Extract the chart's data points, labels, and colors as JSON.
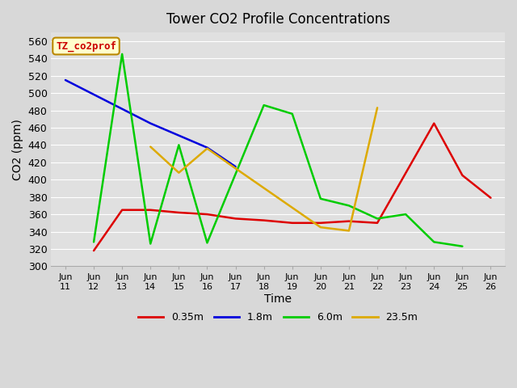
{
  "title": "Tower CO2 Profile Concentrations",
  "xlabel": "Time",
  "ylabel": "CO2 (ppm)",
  "ylim": [
    300,
    570
  ],
  "annotation": "TZ_co2prof",
  "tick_labels": [
    "Jun 11",
    "Jun 12",
    "Jun 13",
    "Jun 14",
    "Jun 15",
    "Jun 16",
    "Jun 17",
    "Jun 18",
    "Jun 19",
    "Jun 20",
    "Jun 21",
    "Jun 22",
    "Jun 23",
    "Jun 24",
    "Jun 25",
    "Jun 26"
  ],
  "series": [
    {
      "label": "0.35m",
      "color": "#dd0000",
      "x": [
        1,
        2,
        3,
        4,
        5,
        6,
        7,
        8,
        9,
        10,
        11,
        13,
        14,
        15
      ],
      "y": [
        318,
        365,
        365,
        362,
        360,
        355,
        353,
        350,
        350,
        352,
        350,
        465,
        405,
        379
      ]
    },
    {
      "label": "1.8m",
      "color": "#0000dd",
      "x": [
        0,
        3,
        5,
        6
      ],
      "y": [
        515,
        465,
        437,
        415
      ]
    },
    {
      "label": "6.0m",
      "color": "#00cc00",
      "x": [
        1,
        2,
        3,
        4,
        5,
        7,
        8,
        9,
        10,
        11,
        12,
        13,
        14
      ],
      "y": [
        328,
        545,
        326,
        440,
        327,
        486,
        476,
        378,
        370,
        355,
        360,
        328,
        323
      ]
    },
    {
      "label": "23.5m",
      "color": "#ddaa00",
      "x": [
        3,
        4,
        5,
        6,
        9,
        10,
        11
      ],
      "y": [
        438,
        408,
        436,
        413,
        345,
        341,
        483
      ]
    }
  ],
  "background_color": "#e8e8e8",
  "plot_bg_color": "#e0e0e0",
  "grid_color": "#ffffff",
  "title_fontsize": 12,
  "axis_label_fontsize": 10,
  "tick_fontsize": 8,
  "legend_fontsize": 9
}
